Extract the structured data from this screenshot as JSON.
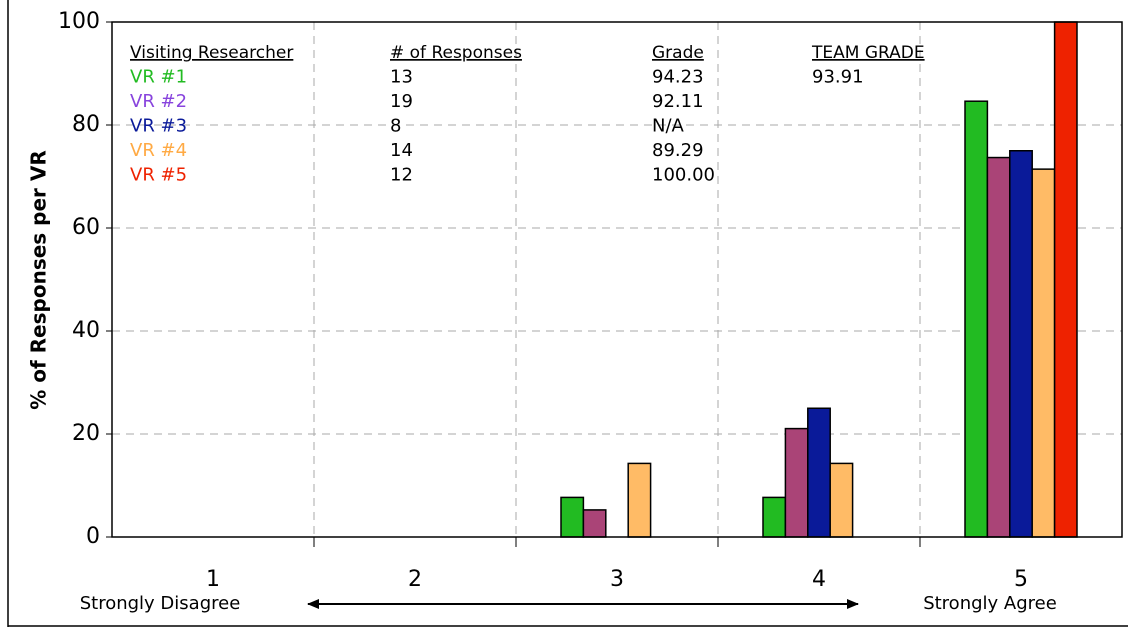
{
  "chart_data": {
    "type": "bar",
    "y_label": "% of Responses per VR",
    "categories": [
      "1",
      "2",
      "3",
      "4",
      "5"
    ],
    "annotations": {
      "left": "Strongly Disagree",
      "right": "Strongly Agree"
    },
    "series": [
      {
        "name": "VR #1",
        "color": "#22bb22",
        "label_color": "#22bb22",
        "values": [
          0,
          0,
          7.69,
          7.69,
          84.62
        ]
      },
      {
        "name": "VR #2",
        "color": "#aa4477",
        "label_color": "#8844dd",
        "values": [
          0,
          0,
          5.26,
          21.05,
          73.68
        ]
      },
      {
        "name": "VR #3",
        "color": "#0a1a99",
        "label_color": "#0a1a99",
        "values": [
          0,
          0,
          0,
          25,
          75
        ]
      },
      {
        "name": "VR #4",
        "color": "#ffbb66",
        "label_color": "#ffaa44",
        "values": [
          0,
          0,
          14.29,
          14.29,
          71.43
        ]
      },
      {
        "name": "VR #5",
        "color": "#ee2200",
        "label_color": "#ee2200",
        "values": [
          0,
          0,
          0,
          0,
          100
        ]
      }
    ],
    "table": {
      "headers": [
        "Visiting Researcher",
        "# of Responses",
        "Grade",
        "TEAM GRADE"
      ],
      "rows": [
        [
          "13",
          "94.23"
        ],
        [
          "19",
          "92.11"
        ],
        [
          "8",
          "N/A"
        ],
        [
          "14",
          "89.29"
        ],
        [
          "12",
          "100.00"
        ]
      ],
      "team_grade": "93.91"
    },
    "ylim": [
      0,
      100
    ],
    "yticks": [
      0,
      20,
      40,
      60,
      80,
      100
    ],
    "grid": true
  }
}
